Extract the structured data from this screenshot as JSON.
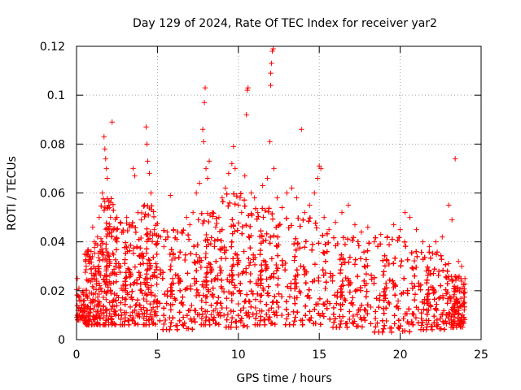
{
  "chart_data": {
    "type": "scatter",
    "title": "Day 129 of 2024, Rate Of TEC Index for receiver yar2",
    "xlabel": "GPS time / hours",
    "ylabel": "ROTI / TECUs",
    "xlim": [
      0,
      25
    ],
    "ylim": [
      0,
      0.12
    ],
    "xticks": [
      0,
      5,
      10,
      15,
      20,
      25
    ],
    "xtick_labels": [
      "0",
      "5",
      "10",
      "15",
      "20",
      "25"
    ],
    "yticks": [
      0,
      0.02,
      0.04,
      0.06,
      0.08,
      0.1,
      0.12
    ],
    "ytick_labels": [
      "0",
      "0.02",
      "0.04",
      "0.06",
      "0.08",
      "0.1",
      "0.12"
    ],
    "grid": true,
    "marker": "+",
    "marker_color": "#ff0000",
    "series": [
      {
        "name": "ROTI",
        "points": [
          [
            0.05,
            0.01
          ],
          [
            0.05,
            0.025
          ],
          [
            0.1,
            0.018
          ],
          [
            0.1,
            0.012
          ],
          [
            0.15,
            0.021
          ],
          [
            0.2,
            0.016
          ],
          [
            0.3,
            0.013
          ],
          [
            0.4,
            0.02
          ],
          [
            0.5,
            0.035
          ],
          [
            0.6,
            0.03
          ],
          [
            0.7,
            0.024
          ],
          [
            0.8,
            0.019
          ],
          [
            0.9,
            0.033
          ],
          [
            1.0,
            0.046
          ],
          [
            1.1,
            0.04
          ],
          [
            1.2,
            0.028
          ],
          [
            1.3,
            0.042
          ],
          [
            1.4,
            0.05
          ],
          [
            1.5,
            0.036
          ],
          [
            1.6,
            0.06
          ],
          [
            1.7,
            0.083
          ],
          [
            1.75,
            0.078
          ],
          [
            1.8,
            0.074
          ],
          [
            1.85,
            0.07
          ],
          [
            1.9,
            0.066
          ],
          [
            2.0,
            0.055
          ],
          [
            2.1,
            0.05
          ],
          [
            2.2,
            0.089
          ],
          [
            2.3,
            0.045
          ],
          [
            2.5,
            0.04
          ],
          [
            2.7,
            0.048
          ],
          [
            2.9,
            0.044
          ],
          [
            3.1,
            0.05
          ],
          [
            3.3,
            0.046
          ],
          [
            3.5,
            0.07
          ],
          [
            3.6,
            0.067
          ],
          [
            3.8,
            0.052
          ],
          [
            4.0,
            0.049
          ],
          [
            4.2,
            0.055
          ],
          [
            4.3,
            0.087
          ],
          [
            4.35,
            0.08
          ],
          [
            4.4,
            0.073
          ],
          [
            4.5,
            0.068
          ],
          [
            4.6,
            0.06
          ],
          [
            4.8,
            0.045
          ],
          [
            5.0,
            0.04
          ],
          [
            5.2,
            0.042
          ],
          [
            5.4,
            0.038
          ],
          [
            5.6,
            0.044
          ],
          [
            5.8,
            0.059
          ],
          [
            6.0,
            0.045
          ],
          [
            6.2,
            0.041
          ],
          [
            6.5,
            0.044
          ],
          [
            6.8,
            0.05
          ],
          [
            7.0,
            0.047
          ],
          [
            7.2,
            0.052
          ],
          [
            7.4,
            0.06
          ],
          [
            7.6,
            0.064
          ],
          [
            7.8,
            0.086
          ],
          [
            7.85,
            0.081
          ],
          [
            7.9,
            0.097
          ],
          [
            7.95,
            0.103
          ],
          [
            8.0,
            0.07
          ],
          [
            8.1,
            0.066
          ],
          [
            8.2,
            0.073
          ],
          [
            8.4,
            0.052
          ],
          [
            8.6,
            0.046
          ],
          [
            8.8,
            0.05
          ],
          [
            9.0,
            0.058
          ],
          [
            9.2,
            0.062
          ],
          [
            9.4,
            0.068
          ],
          [
            9.6,
            0.072
          ],
          [
            9.7,
            0.079
          ],
          [
            9.8,
            0.07
          ],
          [
            10.0,
            0.055
          ],
          [
            10.2,
            0.052
          ],
          [
            10.4,
            0.067
          ],
          [
            10.5,
            0.092
          ],
          [
            10.55,
            0.102
          ],
          [
            10.6,
            0.103
          ],
          [
            10.8,
            0.06
          ],
          [
            11.0,
            0.058
          ],
          [
            11.2,
            0.052
          ],
          [
            11.5,
            0.063
          ],
          [
            11.8,
            0.066
          ],
          [
            11.95,
            0.081
          ],
          [
            12.0,
            0.104
          ],
          [
            12.0,
            0.109
          ],
          [
            12.05,
            0.113
          ],
          [
            12.1,
            0.118
          ],
          [
            12.15,
            0.119
          ],
          [
            12.2,
            0.07
          ],
          [
            12.4,
            0.058
          ],
          [
            12.7,
            0.054
          ],
          [
            13.0,
            0.06
          ],
          [
            13.3,
            0.062
          ],
          [
            13.6,
            0.058
          ],
          [
            13.9,
            0.086
          ],
          [
            14.1,
            0.052
          ],
          [
            14.4,
            0.055
          ],
          [
            14.7,
            0.06
          ],
          [
            14.9,
            0.066
          ],
          [
            15.0,
            0.071
          ],
          [
            15.1,
            0.07
          ],
          [
            15.3,
            0.05
          ],
          [
            15.6,
            0.045
          ],
          [
            16.0,
            0.048
          ],
          [
            16.4,
            0.052
          ],
          [
            16.8,
            0.055
          ],
          [
            17.2,
            0.047
          ],
          [
            17.6,
            0.044
          ],
          [
            18.0,
            0.046
          ],
          [
            18.4,
            0.04
          ],
          [
            18.8,
            0.043
          ],
          [
            19.2,
            0.042
          ],
          [
            19.6,
            0.047
          ],
          [
            20.0,
            0.045
          ],
          [
            20.3,
            0.052
          ],
          [
            20.6,
            0.05
          ],
          [
            21.0,
            0.045
          ],
          [
            21.4,
            0.04
          ],
          [
            21.8,
            0.038
          ],
          [
            22.2,
            0.04
          ],
          [
            22.6,
            0.042
          ],
          [
            23.0,
            0.055
          ],
          [
            23.2,
            0.049
          ],
          [
            23.4,
            0.074
          ],
          [
            23.6,
            0.032
          ],
          [
            23.8,
            0.03
          ],
          [
            24.0,
            0.025
          ]
        ],
        "bands": [
          {
            "from": 0.0,
            "to": 0.5,
            "low": 0.008,
            "high": 0.022,
            "count": 40
          },
          {
            "from": 0.5,
            "to": 1.5,
            "low": 0.006,
            "high": 0.04,
            "count": 160
          },
          {
            "from": 1.5,
            "to": 2.5,
            "low": 0.006,
            "high": 0.058,
            "count": 260
          },
          {
            "from": 2.5,
            "to": 4.0,
            "low": 0.006,
            "high": 0.048,
            "count": 340
          },
          {
            "from": 4.0,
            "to": 5.0,
            "low": 0.006,
            "high": 0.055,
            "count": 240
          },
          {
            "from": 5.0,
            "to": 7.5,
            "low": 0.004,
            "high": 0.045,
            "count": 520
          },
          {
            "from": 7.5,
            "to": 9.0,
            "low": 0.006,
            "high": 0.052,
            "count": 330
          },
          {
            "from": 9.0,
            "to": 10.8,
            "low": 0.005,
            "high": 0.06,
            "count": 400
          },
          {
            "from": 10.8,
            "to": 12.5,
            "low": 0.006,
            "high": 0.054,
            "count": 380
          },
          {
            "from": 12.5,
            "to": 15.5,
            "low": 0.006,
            "high": 0.05,
            "count": 600
          },
          {
            "from": 15.5,
            "to": 18.0,
            "low": 0.005,
            "high": 0.042,
            "count": 460
          },
          {
            "from": 18.0,
            "to": 21.0,
            "low": 0.003,
            "high": 0.042,
            "count": 560
          },
          {
            "from": 21.0,
            "to": 23.0,
            "low": 0.004,
            "high": 0.036,
            "count": 380
          },
          {
            "from": 23.0,
            "to": 24.0,
            "low": 0.005,
            "high": 0.026,
            "count": 180
          }
        ]
      }
    ]
  }
}
